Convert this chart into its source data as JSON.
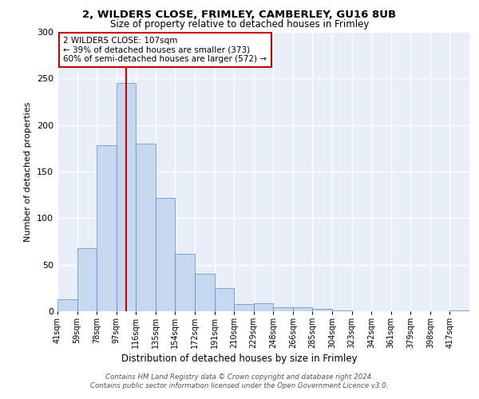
{
  "title1": "2, WILDERS CLOSE, FRIMLEY, CAMBERLEY, GU16 8UB",
  "title2": "Size of property relative to detached houses in Frimley",
  "xlabel": "Distribution of detached houses by size in Frimley",
  "ylabel": "Number of detached properties",
  "bin_labels": [
    "41sqm",
    "59sqm",
    "78sqm",
    "97sqm",
    "116sqm",
    "135sqm",
    "154sqm",
    "172sqm",
    "191sqm",
    "210sqm",
    "229sqm",
    "248sqm",
    "266sqm",
    "285sqm",
    "304sqm",
    "323sqm",
    "342sqm",
    "361sqm",
    "379sqm",
    "398sqm",
    "417sqm"
  ],
  "bar_values": [
    13,
    68,
    178,
    245,
    180,
    122,
    62,
    40,
    25,
    8,
    9,
    4,
    4,
    3,
    1,
    0,
    0,
    0,
    0,
    0,
    1
  ],
  "bar_color": "#c5d8f0",
  "bar_edge_color": "#5a8fc0",
  "vline_index": 3.5,
  "vline_color": "#cc0000",
  "annotation_text": "2 WILDERS CLOSE: 107sqm\n← 39% of detached houses are smaller (373)\n60% of semi-detached houses are larger (572) →",
  "annotation_box_color": "#ffffff",
  "annotation_box_edge": "#cc0000",
  "ylim": [
    0,
    300
  ],
  "yticks": [
    0,
    50,
    100,
    150,
    200,
    250,
    300
  ],
  "background_color": "#e8eef8",
  "grid_color": "#ffffff",
  "footer_text": "Contains HM Land Registry data © Crown copyright and database right 2024.\nContains public sector information licensed under the Open Government Licence v3.0."
}
